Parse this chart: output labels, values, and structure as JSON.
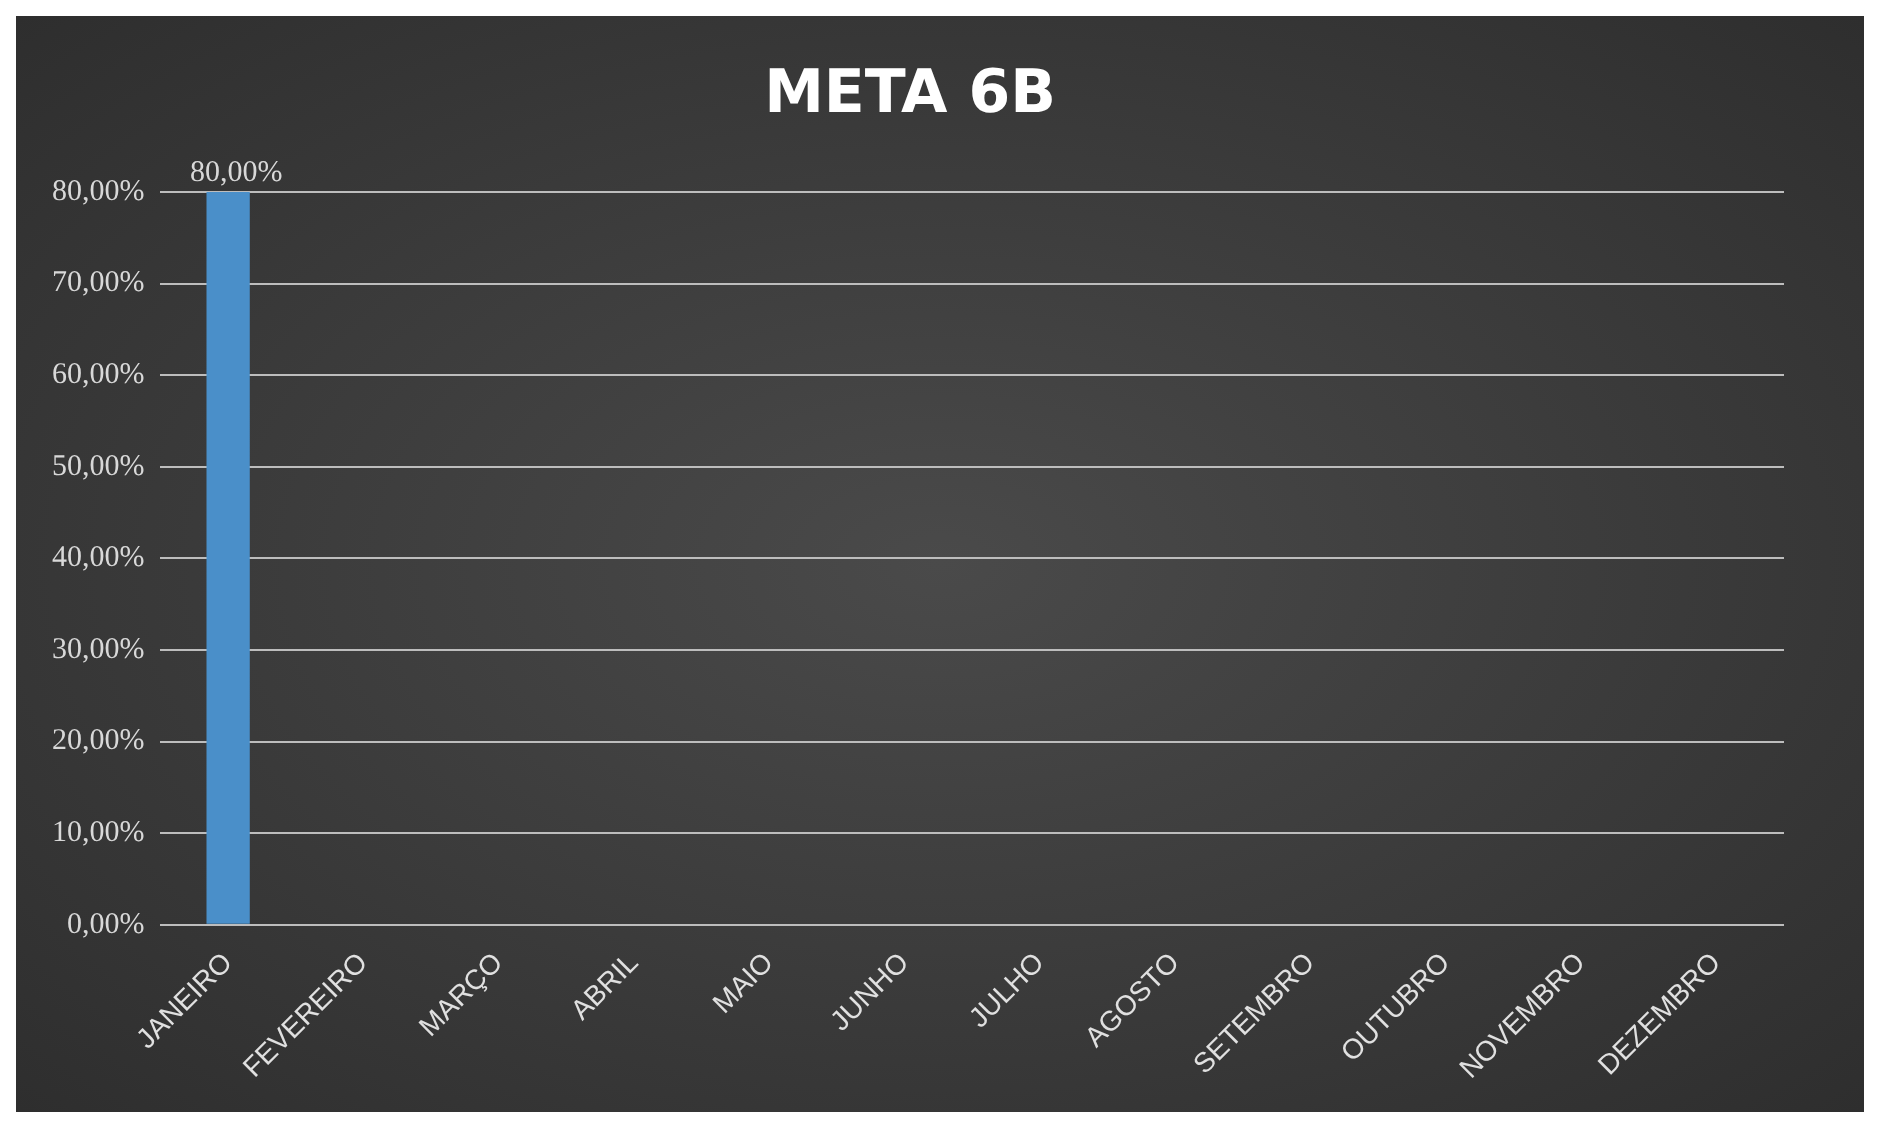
{
  "chart_data": {
    "type": "bar",
    "title": "META 6B",
    "categories": [
      "JANEIRO",
      "FEVEREIRO",
      "MARÇO",
      "ABRIL",
      "MAIO",
      "JUNHO",
      "JULHO",
      "AGOSTO",
      "SETEMBRO",
      "OUTUBRO",
      "NOVEMBRO",
      "DEZEMBRO"
    ],
    "values": [
      80,
      null,
      null,
      null,
      null,
      null,
      null,
      null,
      null,
      null,
      null,
      null
    ],
    "value_labels": [
      "80,00%",
      null,
      null,
      null,
      null,
      null,
      null,
      null,
      null,
      null,
      null,
      null
    ],
    "color": "#4a8fc9",
    "ylim": [
      0,
      80
    ],
    "yticks": [
      {
        "value": 0,
        "label": "0,00%"
      },
      {
        "value": 10,
        "label": "10,00%"
      },
      {
        "value": 20,
        "label": "20,00%"
      },
      {
        "value": 30,
        "label": "30,00%"
      },
      {
        "value": 40,
        "label": "40,00%"
      },
      {
        "value": 50,
        "label": "50,00%"
      },
      {
        "value": 60,
        "label": "60,00%"
      },
      {
        "value": 70,
        "label": "70,00%"
      },
      {
        "value": 80,
        "label": "80,00%"
      }
    ],
    "grid": "y",
    "legend": false
  }
}
